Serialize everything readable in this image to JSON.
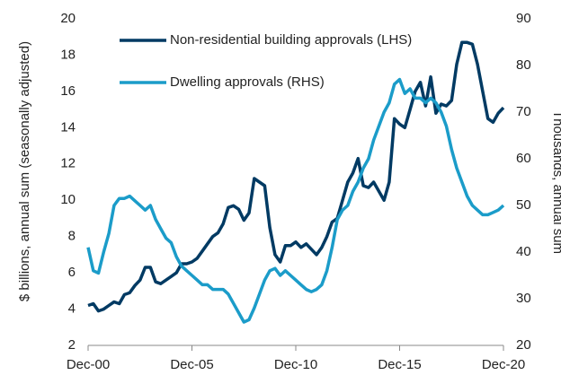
{
  "chart_data": {
    "type": "line",
    "x": [
      "2000-12",
      "2001-03",
      "2001-06",
      "2001-09",
      "2001-12",
      "2002-03",
      "2002-06",
      "2002-09",
      "2002-12",
      "2003-03",
      "2003-06",
      "2003-09",
      "2003-12",
      "2004-03",
      "2004-06",
      "2004-09",
      "2004-12",
      "2005-03",
      "2005-06",
      "2005-09",
      "2005-12",
      "2006-03",
      "2006-06",
      "2006-09",
      "2006-12",
      "2007-03",
      "2007-06",
      "2007-09",
      "2007-12",
      "2008-03",
      "2008-06",
      "2008-09",
      "2008-12",
      "2009-03",
      "2009-06",
      "2009-09",
      "2009-12",
      "2010-03",
      "2010-06",
      "2010-09",
      "2010-12",
      "2011-03",
      "2011-06",
      "2011-09",
      "2011-12",
      "2012-03",
      "2012-06",
      "2012-09",
      "2012-12",
      "2013-03",
      "2013-06",
      "2013-09",
      "2013-12",
      "2014-03",
      "2014-06",
      "2014-09",
      "2014-12",
      "2015-03",
      "2015-06",
      "2015-09",
      "2015-12",
      "2016-03",
      "2016-06",
      "2016-09",
      "2016-12",
      "2017-03",
      "2017-06",
      "2017-09",
      "2017-12",
      "2018-03",
      "2018-06",
      "2018-09",
      "2018-12",
      "2019-03",
      "2019-06",
      "2019-09",
      "2019-12",
      "2020-03",
      "2020-06",
      "2020-09",
      "2020-12"
    ],
    "series": [
      {
        "name": "Non-residential building approvals (LHS)",
        "color": "#003a63",
        "values": [
          4.2,
          4.3,
          3.9,
          4.0,
          4.2,
          4.4,
          4.3,
          4.8,
          4.9,
          5.3,
          5.6,
          6.3,
          6.3,
          5.5,
          5.4,
          5.6,
          5.8,
          6.0,
          6.5,
          6.5,
          6.6,
          6.8,
          7.2,
          7.6,
          8.0,
          8.2,
          8.7,
          9.6,
          9.7,
          9.5,
          8.9,
          9.3,
          11.2,
          11.0,
          10.8,
          8.5,
          7.0,
          6.6,
          7.5,
          7.5,
          7.7,
          7.4,
          7.6,
          7.3,
          7.0,
          7.4,
          8.0,
          8.8,
          9.0,
          10.0,
          11.0,
          11.5,
          12.3,
          10.8,
          10.7,
          11.0,
          10.5,
          10.0,
          11.0,
          14.5,
          14.2,
          14.0,
          15.0,
          16.0,
          16.5,
          15.2,
          16.8,
          14.8,
          15.3,
          15.2,
          15.5,
          17.5,
          18.7,
          18.7,
          18.6,
          17.5,
          16.0,
          14.5,
          14.3,
          14.8,
          15.1
        ]
      },
      {
        "name": "Dwelling approvals (RHS)",
        "color": "#1b9cc9",
        "axis": "y2",
        "values": [
          41,
          36,
          35.5,
          40,
          44,
          50,
          51.5,
          51.5,
          52,
          51,
          50,
          49,
          50,
          47,
          45,
          43,
          42,
          39,
          37,
          36,
          35,
          34,
          33,
          33,
          32,
          32,
          32,
          31,
          29,
          27,
          25,
          25.5,
          28,
          31,
          34,
          36,
          36.5,
          35,
          36,
          35,
          34,
          33,
          32,
          31.5,
          32,
          33,
          36,
          41,
          47,
          49,
          50,
          53,
          55,
          58,
          60,
          64,
          67,
          70,
          72,
          76,
          77,
          74,
          75,
          73,
          73,
          72,
          73,
          72,
          70,
          67,
          62,
          58,
          55,
          52,
          50,
          49,
          48,
          48,
          48.5,
          49,
          50
        ]
      }
    ],
    "xlim": [
      "2000-12",
      "2020-12"
    ],
    "xticks": [
      {
        "value": "2000-12",
        "label": "Dec-00"
      },
      {
        "value": "2005-12",
        "label": "Dec-05"
      },
      {
        "value": "2010-12",
        "label": "Dec-10"
      },
      {
        "value": "2015-12",
        "label": "Dec-15"
      },
      {
        "value": "2020-12",
        "label": "Dec-20"
      }
    ],
    "ylim": [
      2,
      20
    ],
    "yticks": [
      2,
      4,
      6,
      8,
      10,
      12,
      14,
      16,
      18,
      20
    ],
    "y2lim": [
      20,
      90
    ],
    "y2ticks": [
      20,
      30,
      40,
      50,
      60,
      70,
      80,
      90
    ],
    "ylabel": "$ billions, annual sum (seasonally adjusted)",
    "y2label": "Thousands, annual sum",
    "legend": "upper left",
    "grid": false
  }
}
